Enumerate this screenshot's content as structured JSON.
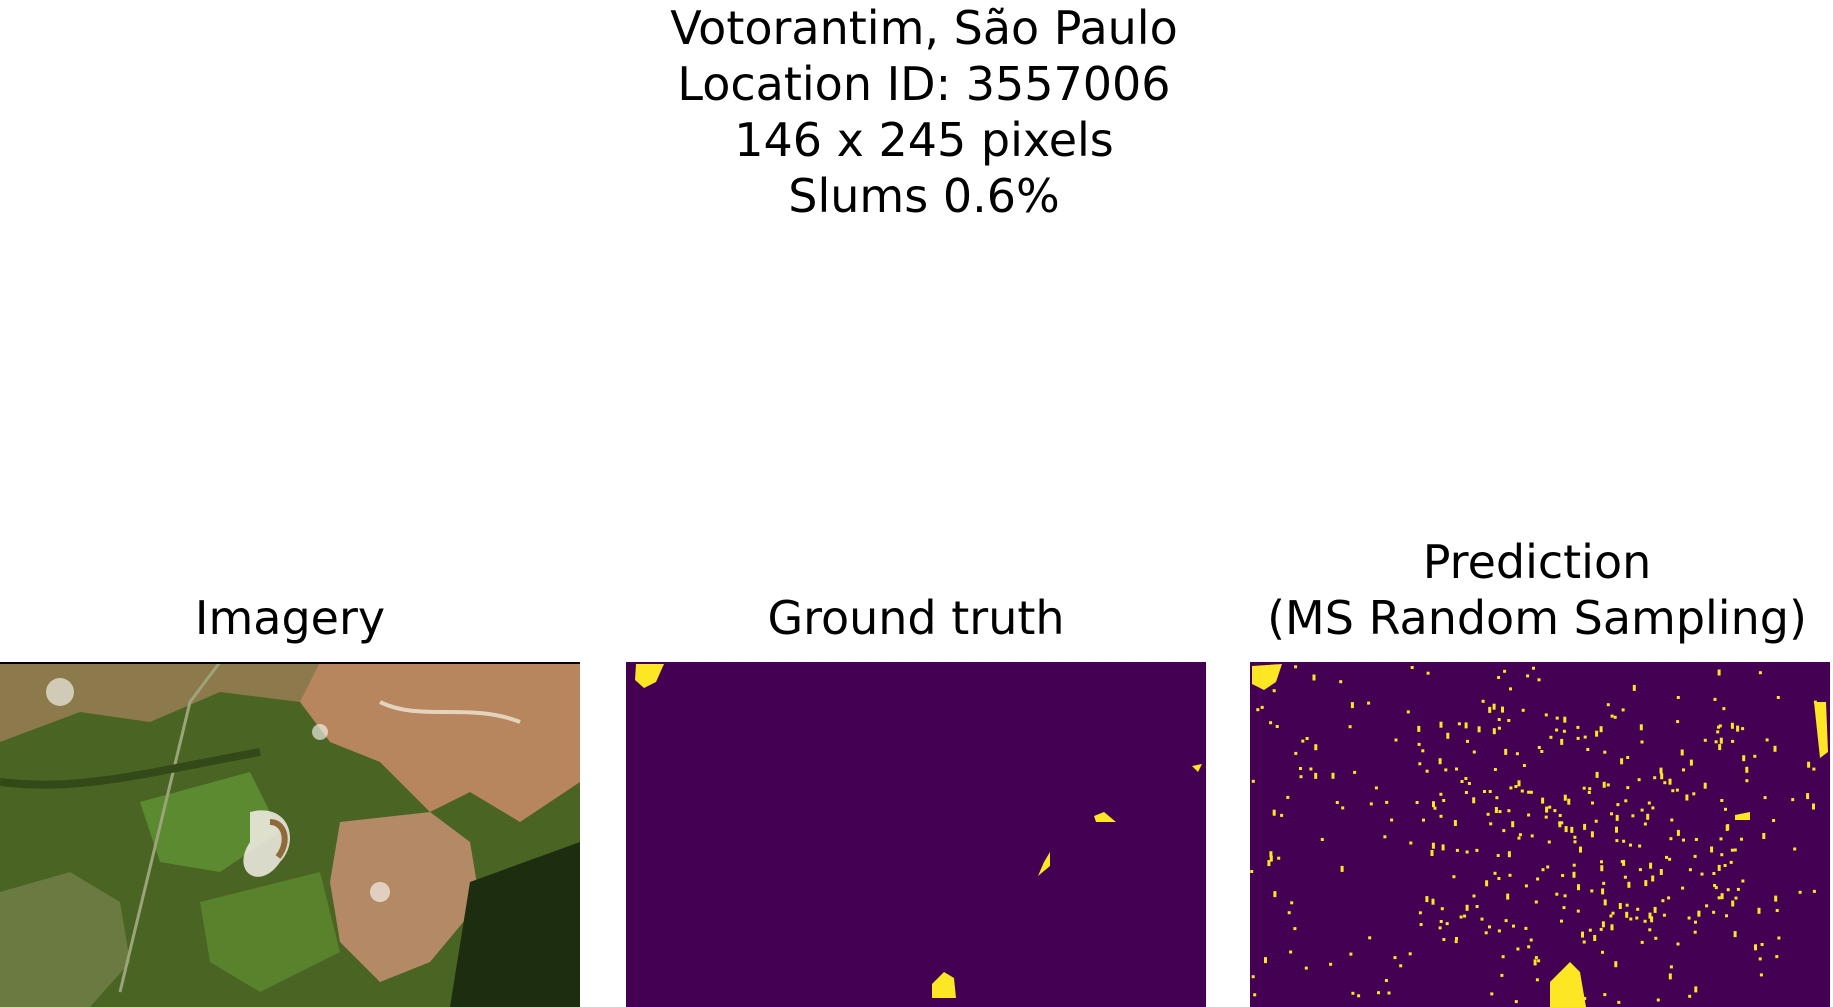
{
  "figure": {
    "title_lines": [
      "Votorantim, São Paulo",
      "Location ID: 3557006",
      "146 x 245 pixels",
      "Slums 0.6%"
    ]
  },
  "panels": [
    {
      "title_lines": [
        "Imagery"
      ]
    },
    {
      "title_lines": [
        "Ground truth"
      ]
    },
    {
      "title_lines": [
        "Prediction",
        "(MS Random Sampling)"
      ]
    }
  ],
  "colors": {
    "background_class": "#440154",
    "slum_class": "#fde725",
    "vegetation_dark": "#2f4a1a",
    "vegetation_light": "#5f7f2c",
    "urban": "#c98a62",
    "urban_light": "#e7c8a6"
  }
}
